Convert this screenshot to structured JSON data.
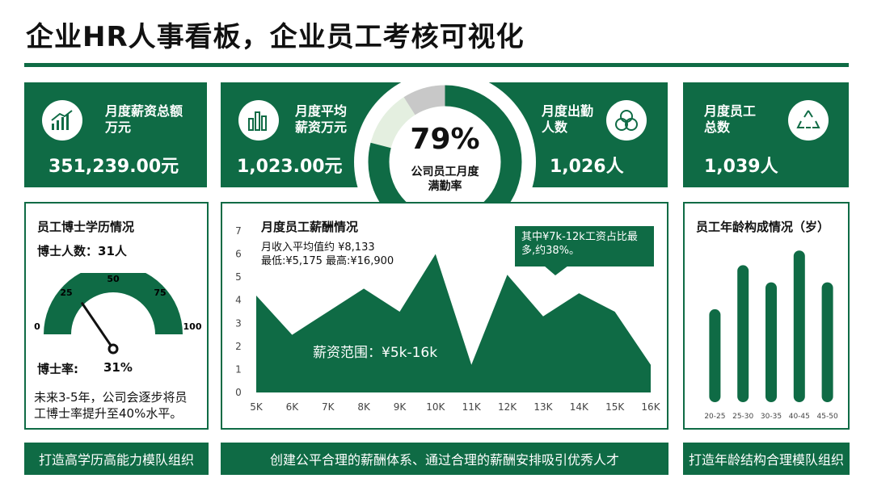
{
  "title": "企业HR人事看板，企业员工考核可视化",
  "kpis": [
    {
      "label_lines": [
        "月度薪资总额",
        "万元"
      ],
      "value": "351,239.00元",
      "icon": "bar-chart-growth-icon"
    },
    {
      "label_lines": [
        "月度平均",
        "薪资万元"
      ],
      "value": "1,023.00元",
      "icon": "bar-chart-icon"
    },
    {
      "label_lines": [
        "月度出勤",
        "人数"
      ],
      "value": "1,026人",
      "icon": "three-circles-icon"
    },
    {
      "label_lines": [
        "月度员工",
        "总数"
      ],
      "value": "1,039人",
      "icon": "recycle-triangle-icon"
    }
  ],
  "ring": {
    "percent_text": "79%",
    "label_lines": [
      "公司员工月度",
      "满勤率"
    ],
    "value": 79
  },
  "phd": {
    "title": "员工博士学历情况",
    "count_text": "博士人数：31人",
    "gauge_ticks": [
      "0",
      "25",
      "50",
      "75",
      "100"
    ],
    "rate_label": "博士率:",
    "rate_value": "31%",
    "rate": 31,
    "note_lines": [
      "未来3-5年，公司会逐步将员",
      "工博士率提升至40%水平。"
    ]
  },
  "salary": {
    "title": "月度员工薪酬情况",
    "info_lines": [
      "月收入平均值约 ¥8,133",
      "最低:¥5,175 最高:¥16,900"
    ],
    "callout_lines": [
      "其中¥7k-12k工资占比最",
      "多,约38%。"
    ],
    "area_label": "薪资范围：¥5k-16k"
  },
  "age": {
    "title": "员工年龄构成情况（岁）"
  },
  "footers": [
    "打造高学历高能力模队组织",
    "创建公平合理的薪酬体系、通过合理的薪酬安排吸引优秀人才",
    "打造年龄结构合理模队组织"
  ],
  "colors": {
    "primary": "#0f6b45",
    "ring_light": "#e4efe0",
    "ring_gray": "#c8c8c8"
  },
  "chart_data": [
    {
      "type": "area",
      "title": "月度员工薪酬情况",
      "x": [
        "5K",
        "6K",
        "7K",
        "8K",
        "9K",
        "10K",
        "11K",
        "12K",
        "13K",
        "14K",
        "15K",
        "16K"
      ],
      "series": [
        {
          "values": [
            4.2,
            2.5,
            3.5,
            4.5,
            3.5,
            6.0,
            1.2,
            5.1,
            3.3,
            4.3,
            3.5,
            1.2
          ]
        }
      ],
      "y_ticks": [
        "0",
        "1",
        "2",
        "3",
        "4",
        "5",
        "6",
        "7"
      ],
      "ylim": [
        0,
        7
      ],
      "grid": false
    },
    {
      "type": "bar",
      "title": "员工年龄构成情况（岁）",
      "categories": [
        "20-25",
        "25-30",
        "30-35",
        "40-45",
        "45-50"
      ],
      "values": [
        3.8,
        5.6,
        4.9,
        6.2,
        4.9
      ],
      "ylim": [
        0,
        7
      ]
    }
  ]
}
